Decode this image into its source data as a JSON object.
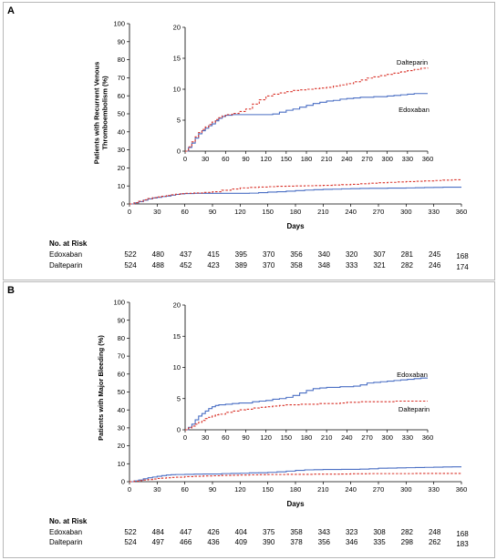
{
  "chart_data": [
    {
      "panel_label": "A",
      "type": "line",
      "ylabel": "Patients with Recurrent Venous Thromboembolism (%)",
      "xlabel": "Days",
      "xlim": [
        0,
        360
      ],
      "ylim": [
        0,
        100
      ],
      "x_ticks": [
        "0",
        "30",
        "60",
        "90",
        "120",
        "150",
        "180",
        "210",
        "240",
        "270",
        "300",
        "330",
        "360"
      ],
      "y_ticks": [
        "0",
        "10",
        "20",
        "30",
        "40",
        "50",
        "60",
        "70",
        "80",
        "90",
        "100"
      ],
      "grid": false,
      "series": [
        {
          "name": "Edoxaban",
          "color": "#4a6fc4",
          "style": "solid",
          "x": [
            0,
            5,
            10,
            15,
            20,
            25,
            30,
            35,
            40,
            45,
            50,
            55,
            60,
            70,
            80,
            90,
            100,
            110,
            120,
            130,
            140,
            150,
            160,
            170,
            180,
            190,
            200,
            210,
            220,
            230,
            240,
            250,
            260,
            270,
            280,
            290,
            300,
            310,
            320,
            330,
            340,
            350,
            360
          ],
          "y": [
            0,
            0.6,
            1.3,
            2.1,
            2.8,
            3.3,
            3.7,
            4.1,
            4.4,
            4.9,
            5.3,
            5.6,
            5.8,
            5.9,
            5.9,
            5.9,
            5.9,
            5.9,
            5.9,
            6.0,
            6.3,
            6.6,
            6.8,
            7.1,
            7.4,
            7.7,
            7.9,
            8.1,
            8.2,
            8.4,
            8.5,
            8.6,
            8.7,
            8.7,
            8.8,
            8.8,
            8.9,
            9.0,
            9.1,
            9.2,
            9.3,
            9.3,
            9.3
          ]
        },
        {
          "name": "Dalteparin",
          "color": "#d9342b",
          "style": "dashed",
          "x": [
            0,
            5,
            10,
            15,
            20,
            25,
            30,
            35,
            40,
            45,
            50,
            55,
            60,
            70,
            80,
            90,
            100,
            110,
            120,
            130,
            140,
            150,
            160,
            170,
            180,
            190,
            200,
            210,
            220,
            230,
            240,
            250,
            260,
            270,
            280,
            290,
            300,
            310,
            320,
            330,
            340,
            350,
            360
          ],
          "y": [
            0,
            0.7,
            1.5,
            2.3,
            3.0,
            3.5,
            3.9,
            4.3,
            4.7,
            5.1,
            5.4,
            5.7,
            5.9,
            6.1,
            6.4,
            6.8,
            7.6,
            8.3,
            8.9,
            9.2,
            9.4,
            9.6,
            9.8,
            9.9,
            10.0,
            10.1,
            10.2,
            10.3,
            10.5,
            10.7,
            10.9,
            11.2,
            11.5,
            11.8,
            12.0,
            12.2,
            12.4,
            12.6,
            12.8,
            13.0,
            13.2,
            13.4,
            13.5
          ]
        }
      ],
      "inset": {
        "ylim": [
          0,
          20
        ],
        "x_ticks": [
          "0",
          "30",
          "60",
          "90",
          "120",
          "150",
          "180",
          "210",
          "240",
          "270",
          "300",
          "330",
          "360"
        ],
        "y_ticks": [
          "0",
          "5",
          "10",
          "15",
          "20"
        ]
      },
      "risk_table": {
        "title": "No. at Risk",
        "rows": [
          {
            "label": "Edoxaban",
            "values": [
              "522",
              "480",
              "437",
              "415",
              "395",
              "370",
              "356",
              "340",
              "320",
              "307",
              "281",
              "245",
              "168"
            ]
          },
          {
            "label": "Dalteparin",
            "values": [
              "524",
              "488",
              "452",
              "423",
              "389",
              "370",
              "358",
              "348",
              "333",
              "321",
              "282",
              "246",
              "174"
            ]
          }
        ]
      }
    },
    {
      "panel_label": "B",
      "type": "line",
      "ylabel": "Patients with Major Bleeding (%)",
      "xlabel": "Days",
      "xlim": [
        0,
        360
      ],
      "ylim": [
        0,
        100
      ],
      "x_ticks": [
        "0",
        "30",
        "60",
        "90",
        "120",
        "150",
        "180",
        "210",
        "240",
        "270",
        "300",
        "330",
        "360"
      ],
      "y_ticks": [
        "0",
        "10",
        "20",
        "30",
        "40",
        "50",
        "60",
        "70",
        "80",
        "90",
        "100"
      ],
      "grid": false,
      "series": [
        {
          "name": "Edoxaban",
          "color": "#4a6fc4",
          "style": "solid",
          "x": [
            0,
            5,
            10,
            15,
            20,
            25,
            30,
            35,
            40,
            45,
            50,
            60,
            70,
            80,
            90,
            100,
            110,
            120,
            130,
            140,
            150,
            160,
            170,
            180,
            190,
            200,
            210,
            220,
            230,
            240,
            250,
            260,
            270,
            280,
            290,
            300,
            310,
            320,
            330,
            340,
            350,
            360
          ],
          "y": [
            0,
            0.4,
            0.9,
            1.6,
            2.2,
            2.6,
            3.0,
            3.4,
            3.7,
            3.9,
            4.0,
            4.1,
            4.2,
            4.3,
            4.3,
            4.5,
            4.6,
            4.7,
            4.9,
            5.0,
            5.2,
            5.5,
            5.9,
            6.3,
            6.6,
            6.7,
            6.8,
            6.8,
            6.9,
            6.9,
            7.0,
            7.2,
            7.5,
            7.6,
            7.7,
            7.8,
            7.9,
            8.0,
            8.1,
            8.2,
            8.3,
            8.3
          ]
        },
        {
          "name": "Dalteparin",
          "color": "#d9342b",
          "style": "dashed",
          "x": [
            0,
            5,
            10,
            15,
            20,
            25,
            30,
            35,
            40,
            45,
            50,
            60,
            70,
            80,
            90,
            100,
            110,
            120,
            130,
            140,
            150,
            160,
            170,
            180,
            190,
            200,
            210,
            220,
            230,
            240,
            250,
            260,
            270,
            280,
            290,
            300,
            310,
            320,
            330,
            340,
            350,
            360
          ],
          "y": [
            0,
            0.3,
            0.6,
            0.9,
            1.2,
            1.5,
            1.8,
            2.0,
            2.2,
            2.4,
            2.5,
            2.8,
            3.0,
            3.2,
            3.3,
            3.5,
            3.6,
            3.7,
            3.8,
            3.9,
            4.0,
            4.0,
            4.1,
            4.1,
            4.1,
            4.2,
            4.2,
            4.2,
            4.3,
            4.4,
            4.4,
            4.5,
            4.5,
            4.5,
            4.5,
            4.5,
            4.6,
            4.6,
            4.6,
            4.6,
            4.6,
            4.6
          ]
        }
      ],
      "inset": {
        "ylim": [
          0,
          20
        ],
        "x_ticks": [
          "0",
          "30",
          "60",
          "90",
          "120",
          "150",
          "180",
          "210",
          "240",
          "270",
          "300",
          "330",
          "360"
        ],
        "y_ticks": [
          "0",
          "5",
          "10",
          "15",
          "20"
        ]
      },
      "risk_table": {
        "title": "No. at Risk",
        "rows": [
          {
            "label": "Edoxaban",
            "values": [
              "522",
              "484",
              "447",
              "426",
              "404",
              "375",
              "358",
              "343",
              "323",
              "308",
              "282",
              "248",
              "168"
            ]
          },
          {
            "label": "Dalteparin",
            "values": [
              "524",
              "497",
              "466",
              "436",
              "409",
              "390",
              "378",
              "356",
              "346",
              "335",
              "298",
              "262",
              "183"
            ]
          }
        ]
      }
    }
  ]
}
